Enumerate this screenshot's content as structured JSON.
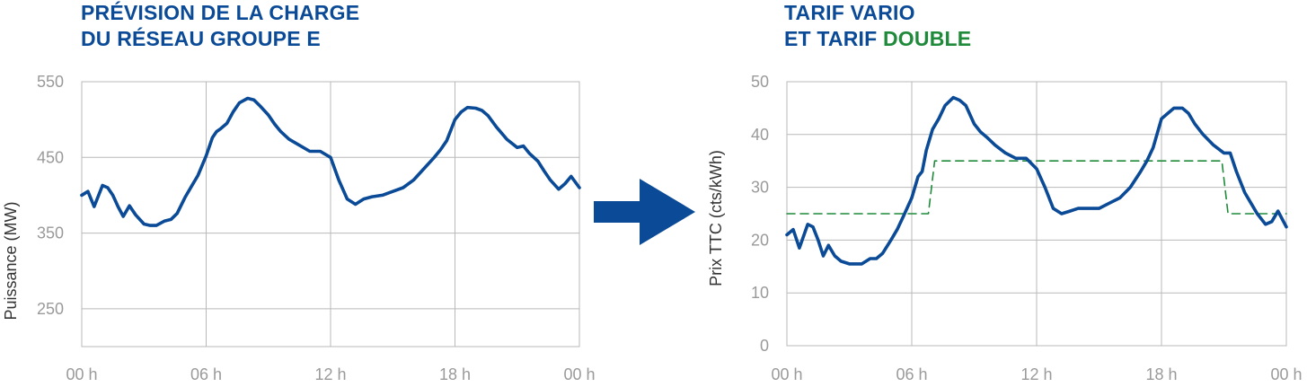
{
  "left_title": {
    "line1": "PRÉVISION DE LA CHARGE",
    "line2": "DU RÉSEAU GROUPE E"
  },
  "right_title": {
    "line1": "TARIF VARIO",
    "line2_prefix": "ET TARIF",
    "line2_highlight": "DOUBLE"
  },
  "colors": {
    "title": "#0a4a96",
    "line": "#0a4a96",
    "double_tarif": "#1f8a3a",
    "grid": "#b9b9b9",
    "arrow": "#0a4a96"
  },
  "icons": {
    "arrow": "right-arrow-icon"
  },
  "chart_data": [
    {
      "type": "line",
      "ylabel": "Puissance (MW)",
      "xlabel": "",
      "ylim": [
        200,
        550
      ],
      "yticks": [
        550,
        450,
        350,
        250
      ],
      "xlim": [
        0,
        24
      ],
      "xticks": [
        0,
        6,
        12,
        18,
        24
      ],
      "xtick_labels": [
        "00 h",
        "06 h",
        "12 h",
        "18 h",
        "00 h"
      ],
      "grid": true,
      "series": [
        {
          "x": [
            0,
            0.3,
            0.6,
            1.0,
            1.25,
            1.5,
            1.75,
            2.0,
            2.3,
            2.6,
            3.0,
            3.3,
            3.6,
            4.0,
            4.3,
            4.6,
            5.0,
            5.3,
            5.6,
            6.0,
            6.3,
            6.5,
            6.7,
            7.0,
            7.3,
            7.6,
            8.0,
            8.3,
            8.6,
            9.0,
            9.3,
            9.6,
            10.0,
            10.5,
            11.0,
            11.5,
            12.0,
            12.4,
            12.8,
            13.2,
            13.6,
            14.0,
            14.5,
            15.0,
            15.5,
            16.0,
            16.5,
            17.0,
            17.3,
            17.6,
            18.0,
            18.3,
            18.6,
            19.0,
            19.3,
            19.6,
            20.0,
            20.5,
            21.0,
            21.3,
            21.6,
            22.0,
            22.3,
            22.6,
            23.0,
            23.3,
            23.6,
            24.0
          ],
          "y": [
            400,
            405,
            385,
            413,
            410,
            400,
            385,
            372,
            386,
            374,
            362,
            360,
            360,
            366,
            368,
            376,
            398,
            412,
            426,
            452,
            476,
            484,
            488,
            495,
            510,
            522,
            528,
            526,
            518,
            506,
            494,
            484,
            474,
            466,
            458,
            458,
            450,
            420,
            395,
            388,
            395,
            398,
            400,
            405,
            410,
            420,
            435,
            450,
            460,
            472,
            500,
            510,
            516,
            515,
            512,
            505,
            490,
            474,
            463,
            465,
            455,
            445,
            432,
            420,
            408,
            415,
            425,
            410
          ]
        }
      ]
    },
    {
      "type": "line",
      "ylabel": "Prix TTC (cts/kWh)",
      "xlabel": "",
      "ylim": [
        0,
        50
      ],
      "yticks": [
        50,
        40,
        30,
        20,
        10,
        0
      ],
      "xlim": [
        0,
        24
      ],
      "xticks": [
        0,
        6,
        12,
        18,
        24
      ],
      "xtick_labels": [
        "00 h",
        "06 h",
        "12 h",
        "18 h",
        "00 h"
      ],
      "grid": true,
      "series": [
        {
          "style": "solid",
          "x": [
            0,
            0.3,
            0.6,
            1.0,
            1.25,
            1.5,
            1.75,
            2.0,
            2.3,
            2.6,
            3.0,
            3.3,
            3.6,
            4.0,
            4.3,
            4.6,
            5.0,
            5.3,
            5.6,
            6.0,
            6.3,
            6.5,
            6.7,
            7.0,
            7.3,
            7.6,
            8.0,
            8.3,
            8.6,
            9.0,
            9.3,
            9.6,
            10.0,
            10.5,
            11.0,
            11.5,
            12.0,
            12.4,
            12.8,
            13.2,
            13.6,
            14.0,
            14.5,
            15.0,
            15.5,
            16.0,
            16.5,
            17.0,
            17.3,
            17.6,
            18.0,
            18.3,
            18.6,
            19.0,
            19.3,
            19.6,
            20.0,
            20.5,
            21.0,
            21.3,
            21.6,
            22.0,
            22.3,
            22.6,
            23.0,
            23.3,
            23.6,
            24.0
          ],
          "y": [
            21,
            22,
            18.5,
            23,
            22.5,
            20,
            17,
            19,
            17,
            16,
            15.5,
            15.5,
            15.5,
            16.5,
            16.5,
            17.5,
            20,
            22,
            24.5,
            28,
            32,
            33,
            37,
            41,
            43,
            45.5,
            47,
            46.5,
            45.5,
            42,
            40.5,
            39.5,
            38,
            36.5,
            35.5,
            35.5,
            33.5,
            30,
            26,
            25,
            25.5,
            26,
            26,
            26,
            27,
            28,
            30,
            33,
            35,
            37.5,
            43,
            44,
            45,
            45,
            44,
            42,
            40,
            38,
            36.5,
            36.5,
            33,
            29,
            27,
            25,
            23,
            23.5,
            25.5,
            22.5
          ]
        },
        {
          "style": "dashed",
          "x": [
            0,
            6.8,
            7.1,
            20.9,
            21.2,
            24
          ],
          "y": [
            25,
            25,
            35,
            35,
            25,
            25
          ]
        }
      ]
    }
  ]
}
